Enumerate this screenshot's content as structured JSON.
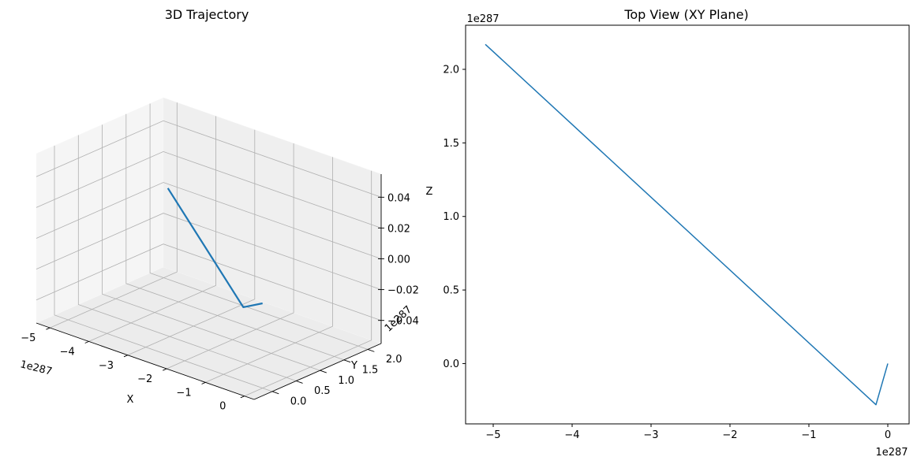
{
  "figure": {
    "background": "#ffffff"
  },
  "chart_data": [
    {
      "type": "line",
      "projection": "3d",
      "title": "3D Trajectory",
      "xlabel": "X",
      "ylabel": "Y",
      "zlabel": "Z",
      "x_offset": "1e287",
      "y_offset": "1e287",
      "x_ticks": [
        "−5",
        "−4",
        "−3",
        "−2",
        "−1",
        "0"
      ],
      "y_ticks": [
        "0.0",
        "0.5",
        "1.0",
        "1.5",
        "2.0"
      ],
      "z_ticks": [
        "0.04",
        "0.02",
        "0.00",
        "−0.02",
        "−0.04"
      ],
      "xlim": [
        -5.35,
        0.25
      ],
      "ylim": [
        -0.38,
        2.28
      ],
      "zlim": [
        -0.055,
        0.055
      ],
      "grid": true,
      "series": [
        {
          "color": "#1f77b4",
          "x": [
            0.0,
            -0.15,
            -5.1
          ],
          "y": [
            0.0,
            -0.28,
            2.17
          ],
          "z": [
            0.0,
            0.0,
            0.0
          ]
        }
      ]
    },
    {
      "type": "line",
      "title": "Top View (XY Plane)",
      "xlabel": "",
      "ylabel": "",
      "x_offset": "1e287",
      "y_offset": "1e287",
      "x_ticks": [
        "−5",
        "−4",
        "−3",
        "−2",
        "−1",
        "0"
      ],
      "y_ticks": [
        "0.0",
        "0.5",
        "1.0",
        "1.5",
        "2.0"
      ],
      "xlim": [
        -5.35,
        0.27
      ],
      "ylim": [
        -0.41,
        2.3
      ],
      "grid": false,
      "series": [
        {
          "color": "#1f77b4",
          "x": [
            0.0,
            -0.15,
            -5.1
          ],
          "y": [
            0.0,
            -0.28,
            2.17
          ]
        }
      ]
    }
  ]
}
